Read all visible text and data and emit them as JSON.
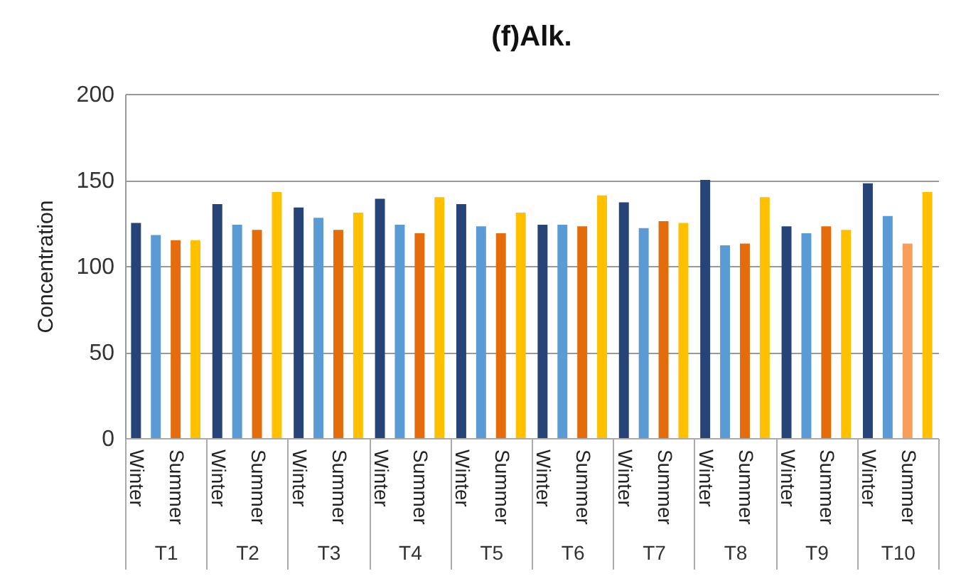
{
  "chart_data": {
    "type": "bar",
    "title": "(f)Alk.",
    "ylabel": "Concentration",
    "categories": [
      "T1",
      "T2",
      "T3",
      "T4",
      "T5",
      "T6",
      "T7",
      "T8",
      "T9",
      "T10"
    ],
    "series": [
      {
        "name": "Winter",
        "color": "#264478",
        "values": [
          125,
          136,
          134,
          139,
          136,
          124,
          137,
          150,
          123,
          148
        ]
      },
      {
        "color": "#5b9bd5",
        "values": [
          118,
          124,
          128,
          124,
          123,
          124,
          122,
          112,
          119,
          129
        ]
      },
      {
        "name": "Summer",
        "color": "#e46c0a",
        "colors": [
          null,
          null,
          null,
          null,
          null,
          null,
          null,
          null,
          null,
          "#f79e5c"
        ],
        "values": [
          115,
          121,
          121,
          119,
          119,
          123,
          126,
          113,
          123,
          113
        ]
      },
      {
        "color": "#ffc000",
        "values": [
          115,
          143,
          131,
          140,
          131,
          141,
          125,
          140,
          121,
          143
        ]
      }
    ],
    "ylim": [
      0,
      200
    ],
    "yticks": [
      0,
      50,
      100,
      150,
      200
    ],
    "grid": "y"
  }
}
